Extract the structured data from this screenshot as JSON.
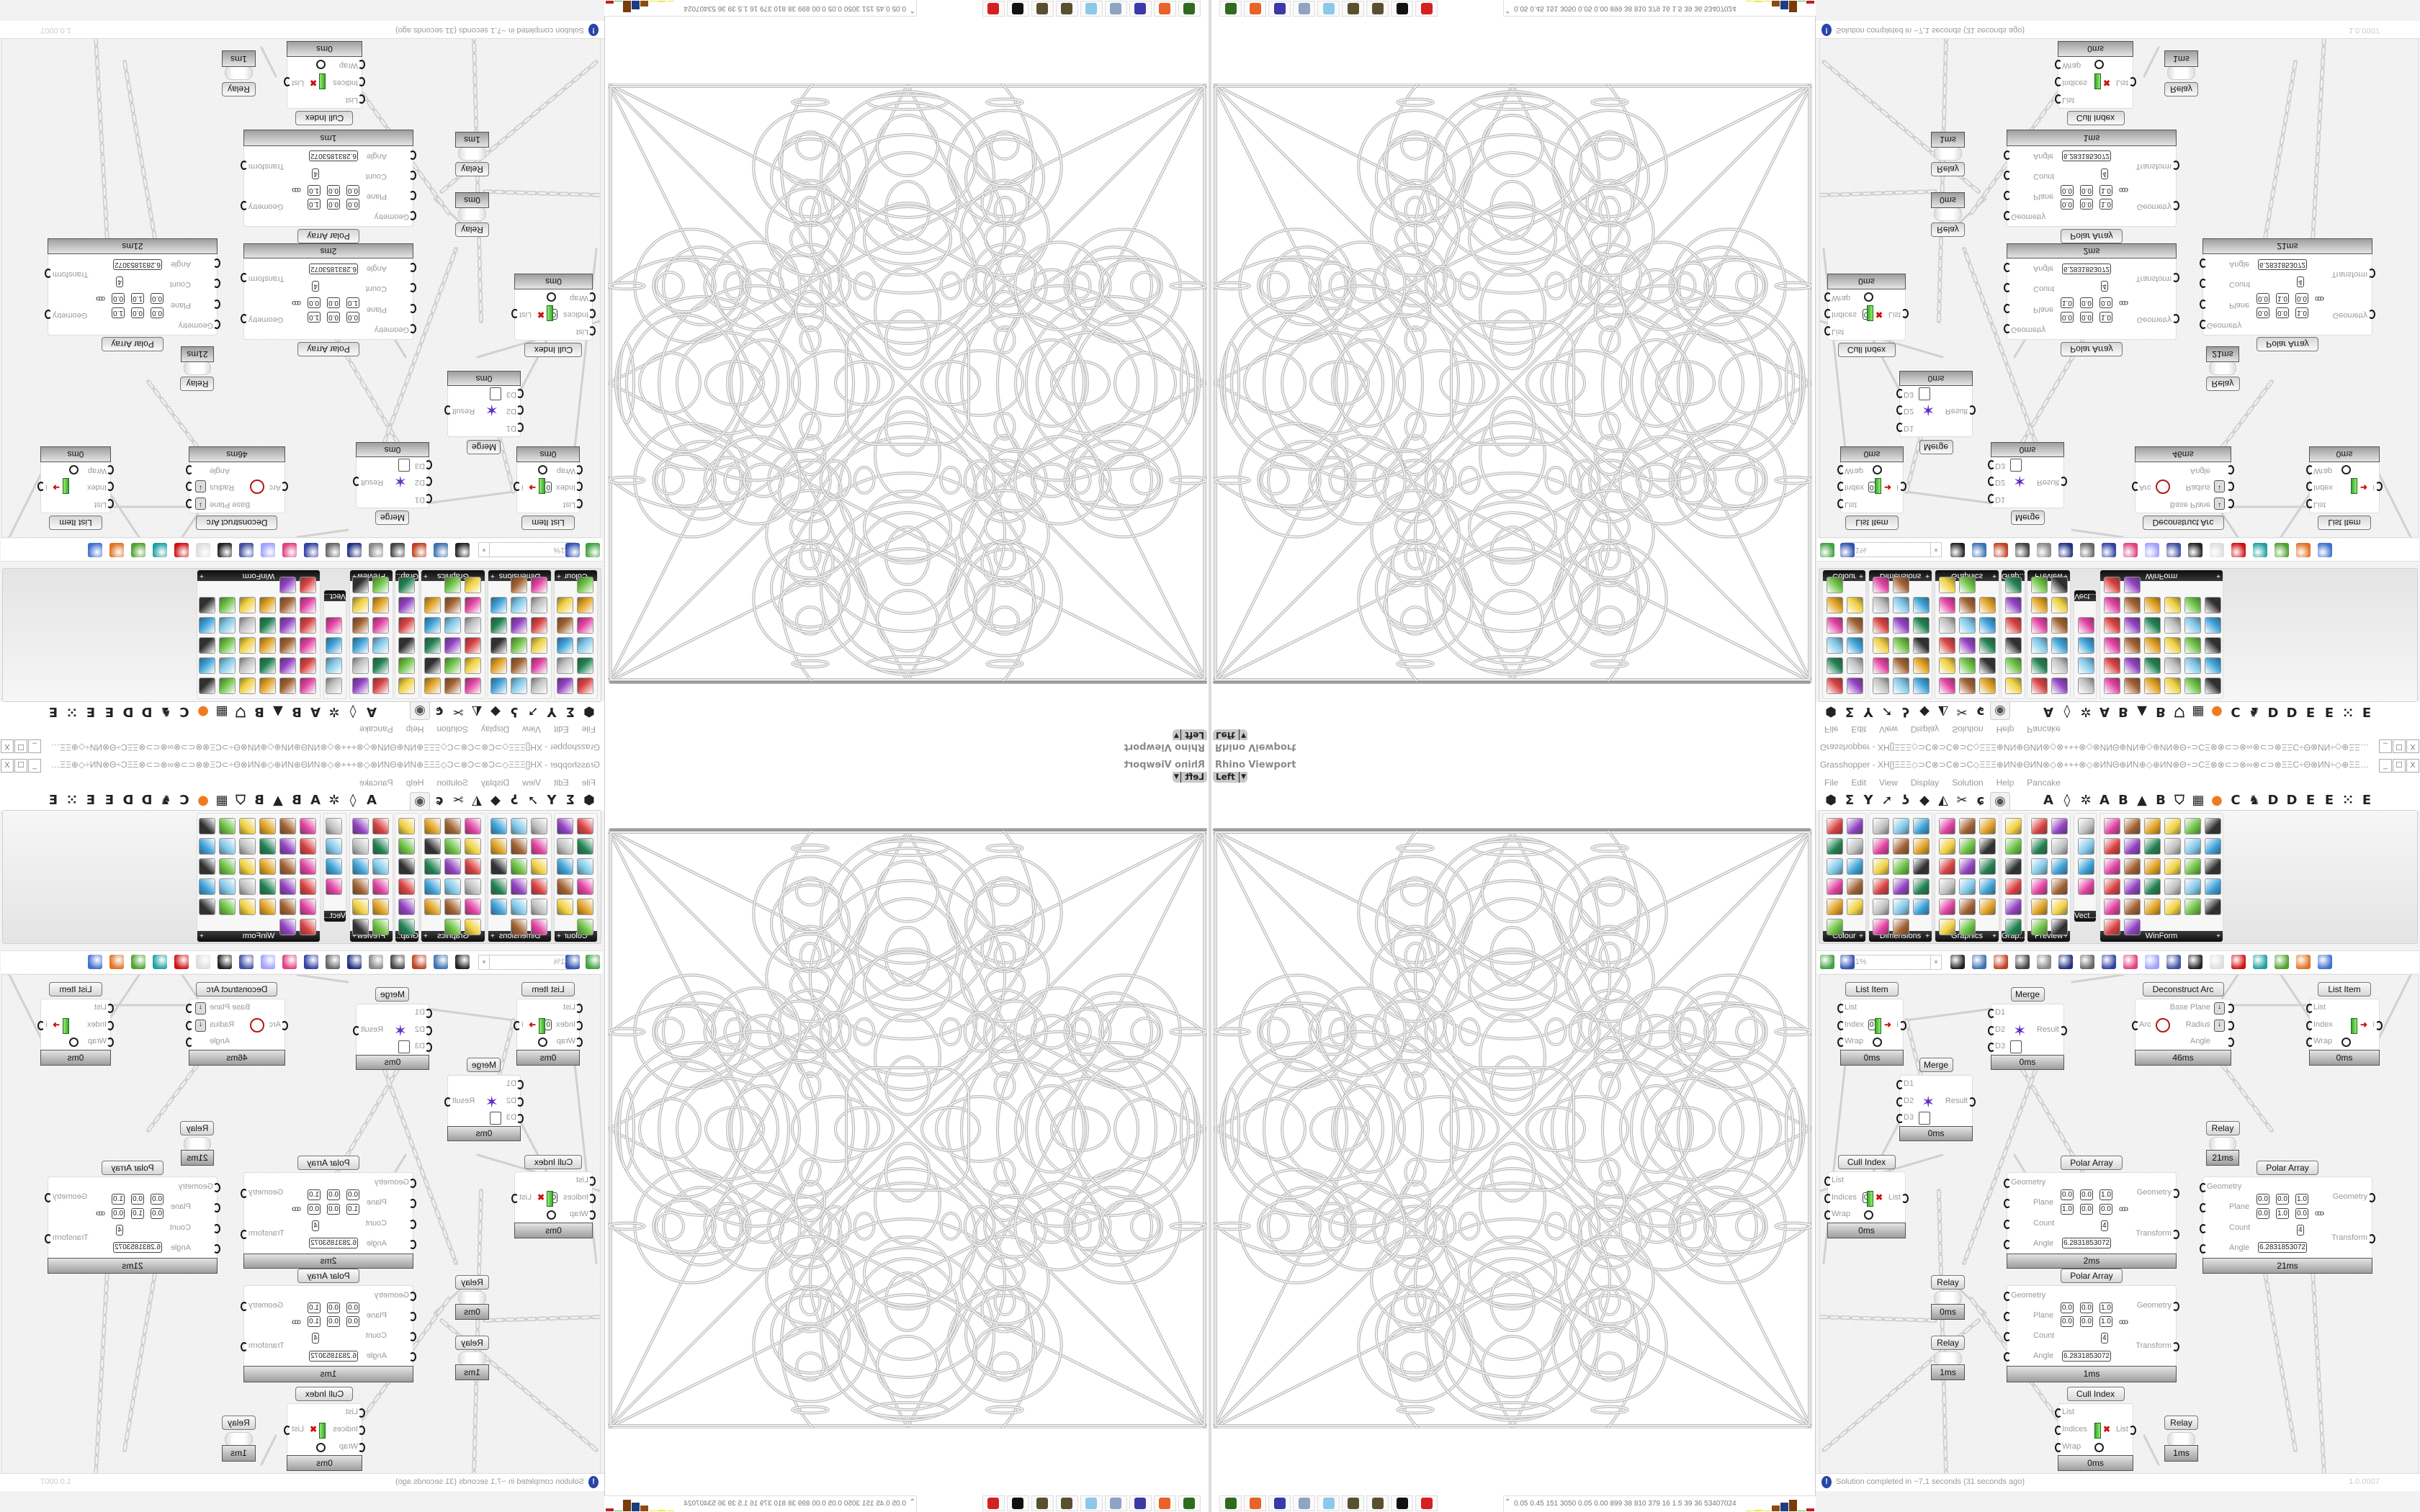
{
  "viewport": {
    "title": "Rhino Viewport",
    "view": "Left"
  },
  "grasshopper": {
    "title": "Grasshopper - XH[]ΞΞΞ◇⊃C⊗⊃C⊗⊃C◇ΞΞΞ⊕ИN⊕ΘИN⊗◇⊗+++⊗◇⊗ИNΘ⊕ИN⊕◇⊕ИN⊗Θ÷⊃CΞ⊗⊗⊂⊃⊗∞⊗⊂⊃⊗ΞΞC÷Θ⊗ИN÷◇⊕ΞΞ⊗ΞΞ⊞÷ΞΞ÷⊞ΞΞ⊗ΞΞ⊕◇⊕⊗⊂⊃ΞΞ⊞÷÷⊃C...",
    "window_buttons": [
      "_",
      "☐",
      "X"
    ],
    "menu": [
      "File",
      "Edit",
      "View",
      "Display",
      "Solution",
      "Help",
      "Pancake"
    ],
    "tab_icons": [
      {
        "name": "hexagon",
        "glyph": "⬢"
      },
      {
        "name": "sigma",
        "glyph": "Σ"
      },
      {
        "name": "y-branch",
        "glyph": "Y"
      },
      {
        "name": "arrow",
        "glyph": "➚"
      },
      {
        "name": "hook",
        "glyph": "ʖ"
      },
      {
        "name": "surface",
        "glyph": "◆"
      },
      {
        "name": "sail",
        "glyph": "◭"
      },
      {
        "name": "scissors",
        "glyph": "✂"
      },
      {
        "name": "swirl",
        "glyph": "ɕ"
      },
      {
        "name": "eye",
        "glyph": "◉",
        "active": true
      },
      {
        "name": "letter-a",
        "glyph": "A"
      },
      {
        "name": "leaf",
        "glyph": "◊"
      },
      {
        "name": "gear",
        "glyph": "✲"
      },
      {
        "name": "letter-a-2",
        "glyph": "A"
      },
      {
        "name": "letter-b",
        "glyph": "B"
      },
      {
        "name": "mountain",
        "glyph": "▲"
      },
      {
        "name": "letter-b-2",
        "glyph": "B"
      },
      {
        "name": "shield",
        "glyph": "⛉"
      },
      {
        "name": "grid",
        "glyph": "▦"
      },
      {
        "name": "orange-circle",
        "glyph": "●"
      },
      {
        "name": "letter-c",
        "glyph": "C"
      },
      {
        "name": "bird",
        "glyph": "♞"
      },
      {
        "name": "letter-d",
        "glyph": "D"
      },
      {
        "name": "letter-d-2",
        "glyph": "D"
      },
      {
        "name": "letter-e",
        "glyph": "E"
      },
      {
        "name": "letter-e-2",
        "glyph": "E"
      },
      {
        "name": "dotted-square",
        "glyph": "⁙"
      },
      {
        "name": "letter-e-3",
        "glyph": "E"
      }
    ],
    "accent_tab_color": "#f07a20",
    "palette": {
      "groups": [
        {
          "label": "Colour",
          "icons": [
            "colour-wheel",
            "gradient",
            "colour-cube",
            "hue-triangle",
            "rgb-cube",
            "hsl",
            "red-sphere",
            "hsv",
            "red-sphere-2",
            "spectrum",
            "gradient-swatch"
          ]
        },
        {
          "label": "Dimensions",
          "icons": [
            "tag-delete",
            "dimension-linear",
            "dimension-angular",
            "tag",
            "line-dimension",
            "ortho-dimension",
            "magenta-swatch",
            "dimension-array",
            "dimension-angle",
            "grid-mesh",
            "triangle-dimension",
            "dimension-path",
            "polyline-dimension",
            "dimension-cross",
            "dimension-leader",
            "dimension-segment",
            "warning-triangle"
          ]
        },
        {
          "label": "Graphics",
          "icons": [
            "circle",
            "text-t",
            "eye-ring",
            "dotted-circle",
            "text-t-bold",
            "rounded-square",
            "blur-dot",
            "list-lines",
            "asterisk",
            "ring",
            "link",
            "flask-save",
            "sphere-grey",
            "dotted-ring",
            "save-asterisk",
            "sphere-dark",
            "camera-ring"
          ]
        },
        {
          "label": "Grap...",
          "icons": [
            "histogram",
            "gradient-legend",
            "pie-legend",
            "line-graph",
            "image-stack",
            "area-graph"
          ]
        },
        {
          "label": "Preview",
          "icons": [
            "egg-colour",
            "camera-frame",
            "sphere-material",
            "landscape",
            "blob-colours",
            "heart-mesh",
            "red-blobs",
            "heart-green",
            "gradient-square",
            "hearts",
            "sl-text",
            "tree-image"
          ]
        },
        {
          "label": "Vect...",
          "icons": [
            "number-sort",
            "curve-nodes",
            "arrows-red",
            "arrows-green"
          ]
        },
        {
          "label": "WinForm",
          "icons": [
            "letter-a",
            "list-box",
            "text-lines",
            "label",
            "chart-lines",
            "table-stack",
            "hatched",
            "numeric-bar",
            "slider-h",
            "grid-yellow",
            "pie-colour",
            "layout-panel",
            "checkbox",
            "text-box",
            "image-tree",
            "pie-chart",
            "shapes",
            "progress",
            "number-field",
            "cubes",
            "media-play",
            "text-plus",
            "ok-button",
            "spinner",
            "vertical-bar",
            "list-view",
            "green-panel",
            "calendar",
            "scroll-bar",
            "battery",
            "bar-chart",
            "forward"
          ]
        }
      ]
    },
    "toolbar": {
      "zoom": "111%",
      "icons": [
        "new-file",
        "save-file",
        "zoom-extents",
        "eye-preview",
        "sketch-brush",
        "bake",
        "email",
        "gha",
        "panel",
        "search",
        "package",
        "bulb",
        "wires",
        "sphere-black",
        "ring-white",
        "gem-red",
        "shape-teal",
        "cone-green",
        "ball-orange",
        "sphere-blue"
      ]
    },
    "nodes": [
      {
        "title": "List Item",
        "inputs": [
          "List",
          "Index",
          "Wrap"
        ],
        "outputs": [
          "i"
        ],
        "value": "0",
        "time": "0ms"
      },
      {
        "title": "Merge",
        "inputs": [
          "D1",
          "D2",
          "D3"
        ],
        "outputs": [
          "Result"
        ],
        "time": "0ms"
      },
      {
        "title": "Deconstruct Arc",
        "inputs": [
          "Arc"
        ],
        "outputs": [
          "Base Plane",
          "Radius",
          "Angle"
        ],
        "time": "46ms"
      },
      {
        "title": "List Item",
        "inputs": [
          "List",
          "Index",
          "Wrap"
        ],
        "outputs": [
          "i"
        ],
        "time": "0ms"
      },
      {
        "title": "Merge",
        "inputs": [
          "D1",
          "D2",
          "D3"
        ],
        "outputs": [
          "Result"
        ],
        "time": "0ms"
      },
      {
        "title": "Relay",
        "time": "21ms"
      },
      {
        "title": "Cull Index",
        "inputs": [
          "List",
          "Indices",
          "Wrap"
        ],
        "outputs": [
          "List"
        ],
        "value": "0",
        "time": "0ms"
      },
      {
        "title": "Polar Array",
        "inputs": [
          "Geometry",
          "Plane",
          "Count",
          "Angle"
        ],
        "outputs": [
          "Geometry",
          "Transform"
        ],
        "plane_o": [
          "0.0",
          "0.0",
          "1.0"
        ],
        "plane_z": [
          "1.0",
          "0.0",
          "0.0"
        ],
        "count": "4",
        "angle": "6.2831853072",
        "time": "2ms"
      },
      {
        "title": "Polar Array",
        "inputs": [
          "Geometry",
          "Plane",
          "Count",
          "Angle"
        ],
        "outputs": [
          "Geometry",
          "Transform"
        ],
        "plane_o": [
          "0.0",
          "0.0",
          "1.0"
        ],
        "plane_z": [
          "0.0",
          "1.0",
          "0.0"
        ],
        "count": "4",
        "angle": "6.2831853072",
        "time": "21ms"
      },
      {
        "title": "Polar Array",
        "inputs": [
          "Geometry",
          "Plane",
          "Count",
          "Angle"
        ],
        "outputs": [
          "Geometry",
          "Transform"
        ],
        "plane_o": [
          "0.0",
          "0.0",
          "1.0"
        ],
        "plane_z": [
          "0.0",
          "0.0",
          "1.0"
        ],
        "count": "4",
        "angle": "6.2831853072",
        "time": "1ms"
      },
      {
        "title": "Relay",
        "time": "0ms"
      },
      {
        "title": "Relay",
        "time": "1ms"
      },
      {
        "title": "Cull Index",
        "inputs": [
          "List",
          "Indices",
          "Wrap"
        ],
        "outputs": [
          "List"
        ],
        "time": "0ms"
      },
      {
        "title": "Relay",
        "time": "1ms"
      }
    ],
    "status": {
      "message": "Solution completed in ~7,1 seconds (31 seconds ago)",
      "version": "1.0.0007"
    }
  },
  "taskbar": {
    "icons": [
      {
        "name": "terminal",
        "color": "#2e6b1f"
      },
      {
        "name": "firefox",
        "color": "#e8622a"
      },
      {
        "name": "floppy-64",
        "color": "#3a3aa8"
      },
      {
        "name": "printer-doc",
        "color": "#8fa3c2"
      },
      {
        "name": "notepad",
        "color": "#8cc8e8"
      },
      {
        "name": "rhino-sphere",
        "color": "#5a5030"
      },
      {
        "name": "rhino-sphere-2",
        "color": "#5a5030"
      },
      {
        "name": "rhino",
        "color": "#111111"
      },
      {
        "name": "settings-red",
        "color": "#d42020"
      }
    ]
  },
  "tray": {
    "stats": "0.05 0.45 151 3050 0.05 0.00 899  38  810  379  16  1.5  39  36  53407024",
    "bars": [
      0.05,
      0.1,
      0.08,
      0.45,
      0.7,
      0.95,
      0.05,
      0.25
    ],
    "bar_colors": [
      "#e8e84a",
      "#e8e84a",
      "#e8e84a",
      "#8b4a12",
      "#1e3c80",
      "#7a3c08",
      "#4ac84a",
      "#c02020"
    ]
  }
}
